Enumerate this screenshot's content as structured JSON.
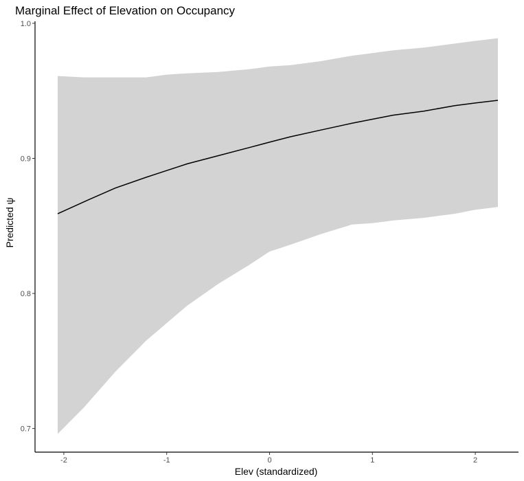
{
  "chart_data": {
    "type": "line",
    "title": "Marginal Effect of Elevation on Occupancy",
    "xlabel": "Elev (standardized)",
    "ylabel": "Predicted ψ",
    "xlim": [
      -2.28,
      2.42
    ],
    "ylim": [
      0.6825,
      1.0015
    ],
    "x_ticks": [
      -2,
      -1,
      0,
      1,
      2
    ],
    "x_tick_labels": [
      "-2",
      "-1",
      "0",
      "1",
      "2"
    ],
    "y_ticks": [
      0.7,
      0.8,
      0.9,
      1.0
    ],
    "y_tick_labels": [
      "0.7",
      "0.8",
      "0.9",
      "1.0"
    ],
    "grid": false,
    "legend": "none",
    "colors": {
      "line": "#000000",
      "ribbon": "#d3d3d3",
      "axis": "#000000",
      "tick_text": "#4d4d4d"
    },
    "series": [
      {
        "kind": "line",
        "x": [
          -2.06,
          -1.8,
          -1.5,
          -1.2,
          -1.0,
          -0.8,
          -0.5,
          -0.2,
          0.0,
          0.2,
          0.5,
          0.8,
          1.0,
          1.2,
          1.5,
          1.8,
          2.0,
          2.22
        ],
        "y": [
          0.859,
          0.868,
          0.878,
          0.886,
          0.891,
          0.896,
          0.902,
          0.908,
          0.912,
          0.916,
          0.921,
          0.926,
          0.929,
          0.932,
          0.935,
          0.939,
          0.941,
          0.943
        ]
      },
      {
        "kind": "ribbon",
        "x": [
          -2.06,
          -1.8,
          -1.5,
          -1.2,
          -1.0,
          -0.8,
          -0.5,
          -0.2,
          0.0,
          0.2,
          0.5,
          0.8,
          1.0,
          1.2,
          1.5,
          1.8,
          2.0,
          2.22
        ],
        "ymin": [
          0.696,
          0.716,
          0.742,
          0.765,
          0.778,
          0.791,
          0.807,
          0.821,
          0.831,
          0.836,
          0.844,
          0.851,
          0.852,
          0.854,
          0.856,
          0.859,
          0.862,
          0.864
        ],
        "ymax": [
          0.961,
          0.96,
          0.96,
          0.96,
          0.962,
          0.963,
          0.964,
          0.966,
          0.968,
          0.969,
          0.972,
          0.976,
          0.978,
          0.98,
          0.982,
          0.985,
          0.987,
          0.989
        ]
      }
    ]
  }
}
